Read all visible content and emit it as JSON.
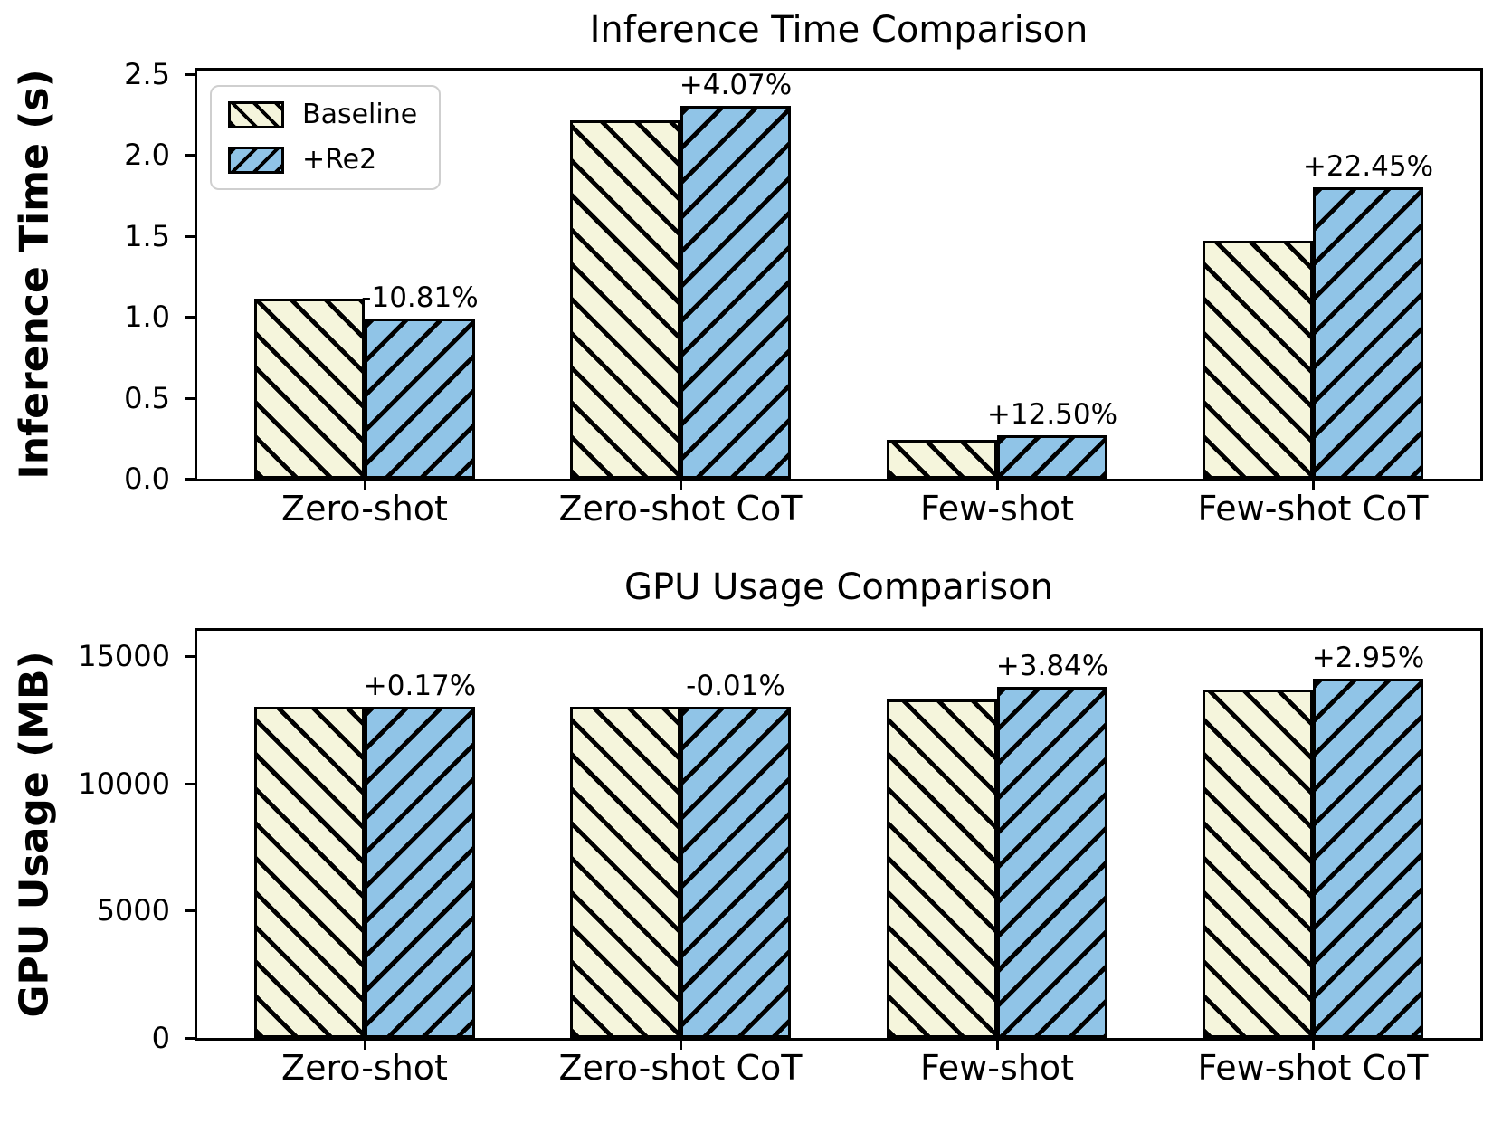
{
  "figure": {
    "background": "#ffffff"
  },
  "colors": {
    "baseline_fill": "#f5f5dc",
    "re2_fill": "#90c4e7",
    "edge": "#000000",
    "legend_border": "#cfcfcf",
    "text": "#000000"
  },
  "legend": {
    "position": "upper left",
    "items": [
      "Baseline",
      "+Re2"
    ]
  },
  "chart_data": [
    {
      "type": "bar",
      "title": "Inference Time Comparison",
      "ylabel": "Inference Time (s)",
      "xlabel": "",
      "categories": [
        "Zero-shot",
        "Zero-shot CoT",
        "Few-shot",
        "Few-shot CoT"
      ],
      "series": [
        {
          "name": "Baseline",
          "values": [
            1.11,
            2.21,
            0.24,
            1.47
          ],
          "hatch": "\\\\",
          "fill": "#f5f5dc"
        },
        {
          "name": "+Re2",
          "values": [
            0.99,
            2.3,
            0.27,
            1.8
          ],
          "hatch": "//",
          "fill": "#90c4e7"
        }
      ],
      "bar_labels": [
        "-10.81%",
        "+4.07%",
        "+12.50%",
        "+22.45%"
      ],
      "yticks": [
        0.0,
        0.5,
        1.0,
        1.5,
        2.0,
        2.5
      ],
      "ytick_labels": [
        "0.0",
        "0.5",
        "1.0",
        "1.5",
        "2.0",
        "2.5"
      ],
      "ylim": [
        0,
        2.52
      ],
      "grid": false,
      "legend": true
    },
    {
      "type": "bar",
      "title": "GPU Usage Comparison",
      "ylabel": "GPU Usage (MB)",
      "xlabel": "",
      "categories": [
        "Zero-shot",
        "Zero-shot CoT",
        "Few-shot",
        "Few-shot CoT"
      ],
      "series": [
        {
          "name": "Baseline",
          "values": [
            13000,
            13000,
            13300,
            13700
          ],
          "hatch": "\\\\",
          "fill": "#f5f5dc"
        },
        {
          "name": "+Re2",
          "values": [
            13022,
            12999,
            13811,
            14104
          ],
          "hatch": "//",
          "fill": "#90c4e7"
        }
      ],
      "bar_labels": [
        "+0.17%",
        "-0.01%",
        "+3.84%",
        "+2.95%"
      ],
      "yticks": [
        0,
        5000,
        10000,
        15000
      ],
      "ytick_labels": [
        "0",
        "5000",
        "10000",
        "15000"
      ],
      "ylim": [
        0,
        16000
      ],
      "grid": false,
      "legend": false
    }
  ]
}
